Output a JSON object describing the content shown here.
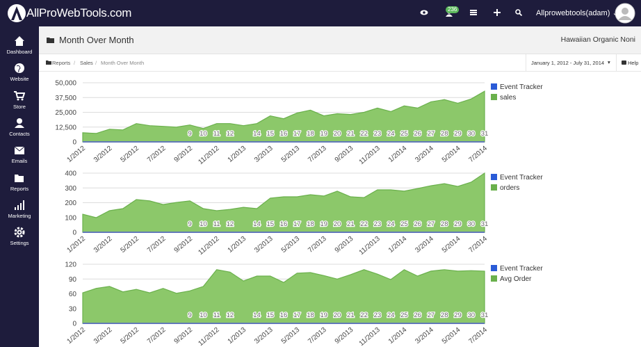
{
  "topbar": {
    "logo": "AllProWebTools.com",
    "notification_count": "236",
    "user": "Allprowebtools(adam)"
  },
  "sidebar": {
    "items": [
      "Dashboard",
      "Website",
      "Store",
      "Contacts",
      "Emails",
      "Reports",
      "Marketing",
      "Settings"
    ]
  },
  "header": {
    "title": "Month Over Month",
    "company": "Hawaiian Organic Noni"
  },
  "breadcrumb": {
    "items": [
      "Reports",
      "Sales",
      "Month Over Month"
    ],
    "date_range": "January 1, 2012 - July 31, 2014",
    "help": "Help"
  },
  "chart_data": [
    {
      "type": "area",
      "categories": [
        "1/2012",
        null,
        "3/2012",
        null,
        "5/2012",
        null,
        "7/2012",
        null,
        "9/2012",
        null,
        "11/2012",
        null,
        "1/2013",
        null,
        "3/2013",
        null,
        "5/2013",
        null,
        "7/2013",
        null,
        "9/2013",
        null,
        "11/2013",
        null,
        "1/2014",
        null,
        "3/2014",
        null,
        "5/2014",
        null,
        "7/2014"
      ],
      "annotations": [
        null,
        null,
        null,
        null,
        null,
        null,
        null,
        null,
        "9",
        "10",
        "11",
        "12",
        null,
        "14",
        "15",
        "16",
        "17",
        "18",
        "19",
        "20",
        "21",
        "22",
        "23",
        "24",
        "25",
        "26",
        "27",
        "28",
        "29",
        "30",
        "31"
      ],
      "series": [
        {
          "name": "Event Tracker",
          "color": "#2a5bd7",
          "values": [
            0,
            0,
            0,
            0,
            0,
            0,
            0,
            0,
            0,
            0,
            0,
            0,
            0,
            0,
            0,
            0,
            0,
            0,
            0,
            0,
            0,
            0,
            0,
            0,
            0,
            0,
            0,
            0,
            0,
            0,
            0
          ]
        },
        {
          "name": "sales",
          "color": "#6ab04c",
          "values": [
            7700,
            7100,
            10700,
            10100,
            15500,
            13700,
            13100,
            12500,
            14300,
            11300,
            15500,
            15500,
            13700,
            15500,
            22000,
            19600,
            24400,
            26800,
            22000,
            23800,
            23200,
            25000,
            28600,
            25600,
            30400,
            28600,
            33900,
            35700,
            32700,
            36300,
            42800
          ]
        }
      ],
      "ylim": [
        0,
        50000
      ],
      "yticks": [
        0,
        {
          "value": 12500,
          "label": "12,500"
        },
        {
          "value": 25000,
          "label": "25,000"
        },
        {
          "value": 37500,
          "label": "37,500"
        },
        {
          "value": 50000,
          "label": "50,000"
        }
      ],
      "grid": true,
      "legend": "right"
    },
    {
      "type": "area",
      "categories": [
        "1/2012",
        null,
        "3/2012",
        null,
        "5/2012",
        null,
        "7/2012",
        null,
        "9/2012",
        null,
        "11/2012",
        null,
        "1/2013",
        null,
        "3/2013",
        null,
        "5/2013",
        null,
        "7/2013",
        null,
        "9/2013",
        null,
        "11/2013",
        null,
        "1/2014",
        null,
        "3/2014",
        null,
        "5/2014",
        null,
        "7/2014"
      ],
      "annotations": [
        null,
        null,
        null,
        null,
        null,
        null,
        null,
        null,
        "9",
        "10",
        "11",
        "12",
        null,
        "14",
        "15",
        "16",
        "17",
        "18",
        "19",
        "20",
        "21",
        "22",
        "23",
        "24",
        "25",
        "26",
        "27",
        "28",
        "29",
        "30",
        "31"
      ],
      "series": [
        {
          "name": "Event Tracker",
          "color": "#2a5bd7",
          "values": [
            0,
            0,
            0,
            0,
            0,
            0,
            0,
            0,
            0,
            0,
            0,
            0,
            0,
            0,
            0,
            0,
            0,
            0,
            0,
            0,
            0,
            0,
            0,
            0,
            0,
            0,
            0,
            0,
            0,
            0,
            0
          ]
        },
        {
          "name": "orders",
          "color": "#6ab04c",
          "values": [
            122,
            99,
            146,
            160,
            221,
            212,
            188,
            202,
            212,
            160,
            146,
            155,
            169,
            160,
            231,
            240,
            240,
            254,
            245,
            278,
            240,
            235,
            287,
            287,
            278,
            296,
            315,
            329,
            310,
            339,
            400
          ]
        }
      ],
      "ylim": [
        0,
        400
      ],
      "yticks": [
        0,
        100,
        200,
        300,
        400
      ],
      "grid": true,
      "legend": "right"
    },
    {
      "type": "area",
      "categories": [
        "1/2012",
        null,
        "3/2012",
        null,
        "5/2012",
        null,
        "7/2012",
        null,
        "9/2012",
        null,
        "11/2012",
        null,
        "1/2013",
        null,
        "3/2013",
        null,
        "5/2013",
        null,
        "7/2013",
        null,
        "9/2013",
        null,
        "11/2013",
        null,
        "1/2014",
        null,
        "3/2014",
        null,
        "5/2014",
        null,
        "7/2014"
      ],
      "annotations": [
        null,
        null,
        null,
        null,
        null,
        null,
        null,
        null,
        "9",
        "10",
        "11",
        "12",
        null,
        "14",
        "15",
        "16",
        "17",
        "18",
        "19",
        "20",
        "21",
        "22",
        "23",
        "24",
        "25",
        "26",
        "27",
        "28",
        "29",
        "30",
        "31"
      ],
      "series": [
        {
          "name": "Event Tracker",
          "color": "#2a5bd7",
          "values": [
            0,
            0,
            0,
            0,
            0,
            0,
            0,
            0,
            0,
            0,
            0,
            0,
            0,
            0,
            0,
            0,
            0,
            0,
            0,
            0,
            0,
            0,
            0,
            0,
            0,
            0,
            0,
            0,
            0,
            0,
            0
          ]
        },
        {
          "name": "Avg Order",
          "color": "#6ab04c",
          "values": [
            62,
            71,
            75,
            64,
            69,
            62,
            71,
            61,
            66,
            75,
            109,
            104,
            86,
            96,
            96,
            83,
            102,
            103,
            97,
            90,
            99,
            109,
            100,
            89,
            109,
            96,
            106,
            109,
            106,
            107,
            106
          ]
        }
      ],
      "ylim": [
        0,
        120
      ],
      "yticks": [
        0,
        30,
        60,
        90,
        120
      ],
      "grid": true,
      "legend": "right"
    }
  ]
}
